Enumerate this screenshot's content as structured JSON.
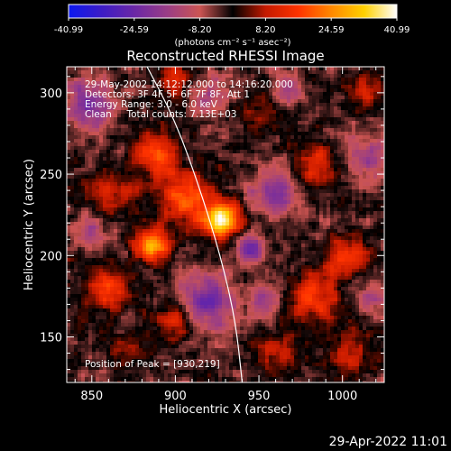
{
  "chart_data": {
    "type": "heatmap",
    "title": "Reconstructed RHESSI Image",
    "xlabel": "Heliocentric X (arcsec)",
    "ylabel": "Heliocentric Y (arcsec)",
    "xlim": [
      835,
      1025
    ],
    "ylim": [
      122,
      316
    ],
    "x_ticks": [
      "850",
      "900",
      "950",
      "1000"
    ],
    "y_ticks": [
      "150",
      "200",
      "250",
      "300"
    ],
    "colorbar": {
      "min": -40.99,
      "max": 40.99,
      "ticks": [
        "-40.99",
        "-24.59",
        "-8.20",
        "8.20",
        "24.59",
        "40.99"
      ],
      "unit_label": "(photons cm⁻² s⁻¹ asec⁻²)",
      "colors": [
        "#0b18f0",
        "#3c1cc6",
        "#6a27a6",
        "#9a3d86",
        "#cc5553",
        "#000000",
        "#c41a00",
        "#ff3300",
        "#ff8800",
        "#ffd000",
        "#ffffff"
      ]
    },
    "annotations": [
      "29-May-2002 14:12:12.000 to 14:16:20.000",
      "Detectors: 3F 4F 5F 6F 7F 8F, Att 1",
      "Energy Range: 3.0 - 6.0 keV",
      "Clean     Total counts: 7.13E+03"
    ],
    "peak_label": "Position of Peak = [930,219]",
    "peak": {
      "x": 930,
      "y": 219
    },
    "limb_curve": [
      [
        880,
        322
      ],
      [
        900,
        283
      ],
      [
        915,
        240
      ],
      [
        927,
        200
      ],
      [
        936,
        160
      ],
      [
        940,
        122
      ]
    ],
    "sources": [
      {
        "x": 928,
        "y": 222,
        "sigma": 8,
        "amp": 40.99
      },
      {
        "x": 886,
        "y": 206,
        "sigma": 7,
        "amp": 34
      },
      {
        "x": 905,
        "y": 236,
        "sigma": 11,
        "amp": 22
      },
      {
        "x": 888,
        "y": 262,
        "sigma": 9,
        "amp": 24
      },
      {
        "x": 860,
        "y": 240,
        "sigma": 10,
        "amp": 14
      },
      {
        "x": 860,
        "y": 180,
        "sigma": 9,
        "amp": 20
      },
      {
        "x": 900,
        "y": 160,
        "sigma": 9,
        "amp": 17
      },
      {
        "x": 870,
        "y": 140,
        "sigma": 8,
        "amp": 10
      },
      {
        "x": 983,
        "y": 175,
        "sigma": 11,
        "amp": 19
      },
      {
        "x": 1003,
        "y": 200,
        "sigma": 9,
        "amp": 20
      },
      {
        "x": 985,
        "y": 255,
        "sigma": 9,
        "amp": 16
      },
      {
        "x": 960,
        "y": 140,
        "sigma": 10,
        "amp": 12
      },
      {
        "x": 955,
        "y": 290,
        "sigma": 10,
        "amp": 12
      },
      {
        "x": 1015,
        "y": 300,
        "sigma": 9,
        "amp": 11
      },
      {
        "x": 900,
        "y": 310,
        "sigma": 10,
        "amp": 13
      },
      {
        "x": 1005,
        "y": 140,
        "sigma": 10,
        "amp": 12
      },
      {
        "x": 945,
        "y": 205,
        "sigma": 6,
        "amp": -24
      },
      {
        "x": 918,
        "y": 170,
        "sigma": 12,
        "amp": -22
      },
      {
        "x": 960,
        "y": 240,
        "sigma": 10,
        "amp": -18
      },
      {
        "x": 955,
        "y": 172,
        "sigma": 7,
        "amp": -15
      },
      {
        "x": 848,
        "y": 293,
        "sigma": 10,
        "amp": -18
      },
      {
        "x": 920,
        "y": 300,
        "sigma": 9,
        "amp": -12
      },
      {
        "x": 1015,
        "y": 260,
        "sigma": 9,
        "amp": -14
      },
      {
        "x": 1015,
        "y": 175,
        "sigma": 8,
        "amp": -10
      },
      {
        "x": 850,
        "y": 215,
        "sigma": 7,
        "amp": -12
      },
      {
        "x": 965,
        "y": 300,
        "sigma": 8,
        "amp": -14
      }
    ]
  },
  "footer": {
    "timestamp": "29-Apr-2022 11:01"
  }
}
